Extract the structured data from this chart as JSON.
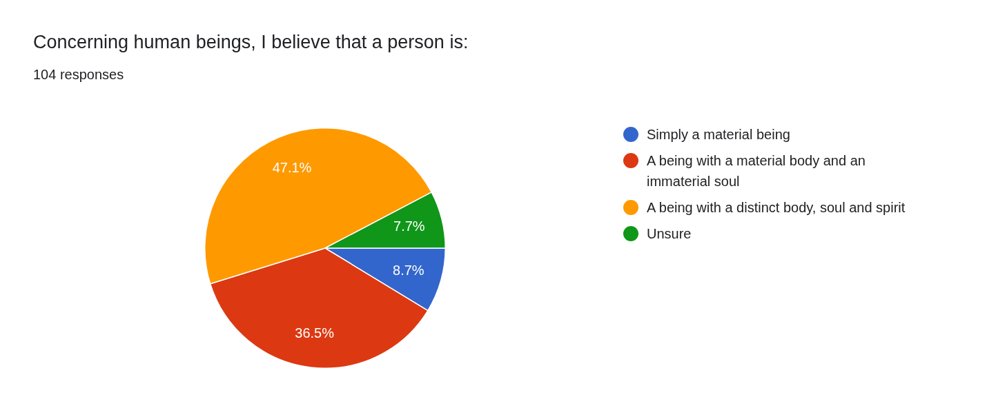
{
  "chart_data": {
    "type": "pie",
    "title": "Concerning human beings, I believe that a person is:",
    "subtitle": "104 responses",
    "categories": [
      "Simply a material being",
      "A being with a material body and an immaterial soul",
      "A being with a distinct body, soul and spirit",
      "Unsure"
    ],
    "values": [
      8.7,
      36.5,
      47.1,
      7.7
    ],
    "colors": [
      "#3366cc",
      "#dc3912",
      "#ff9900",
      "#109618"
    ],
    "value_labels": [
      "8.7%",
      "36.5%",
      "47.1%",
      "7.7%"
    ],
    "legend": "right"
  }
}
